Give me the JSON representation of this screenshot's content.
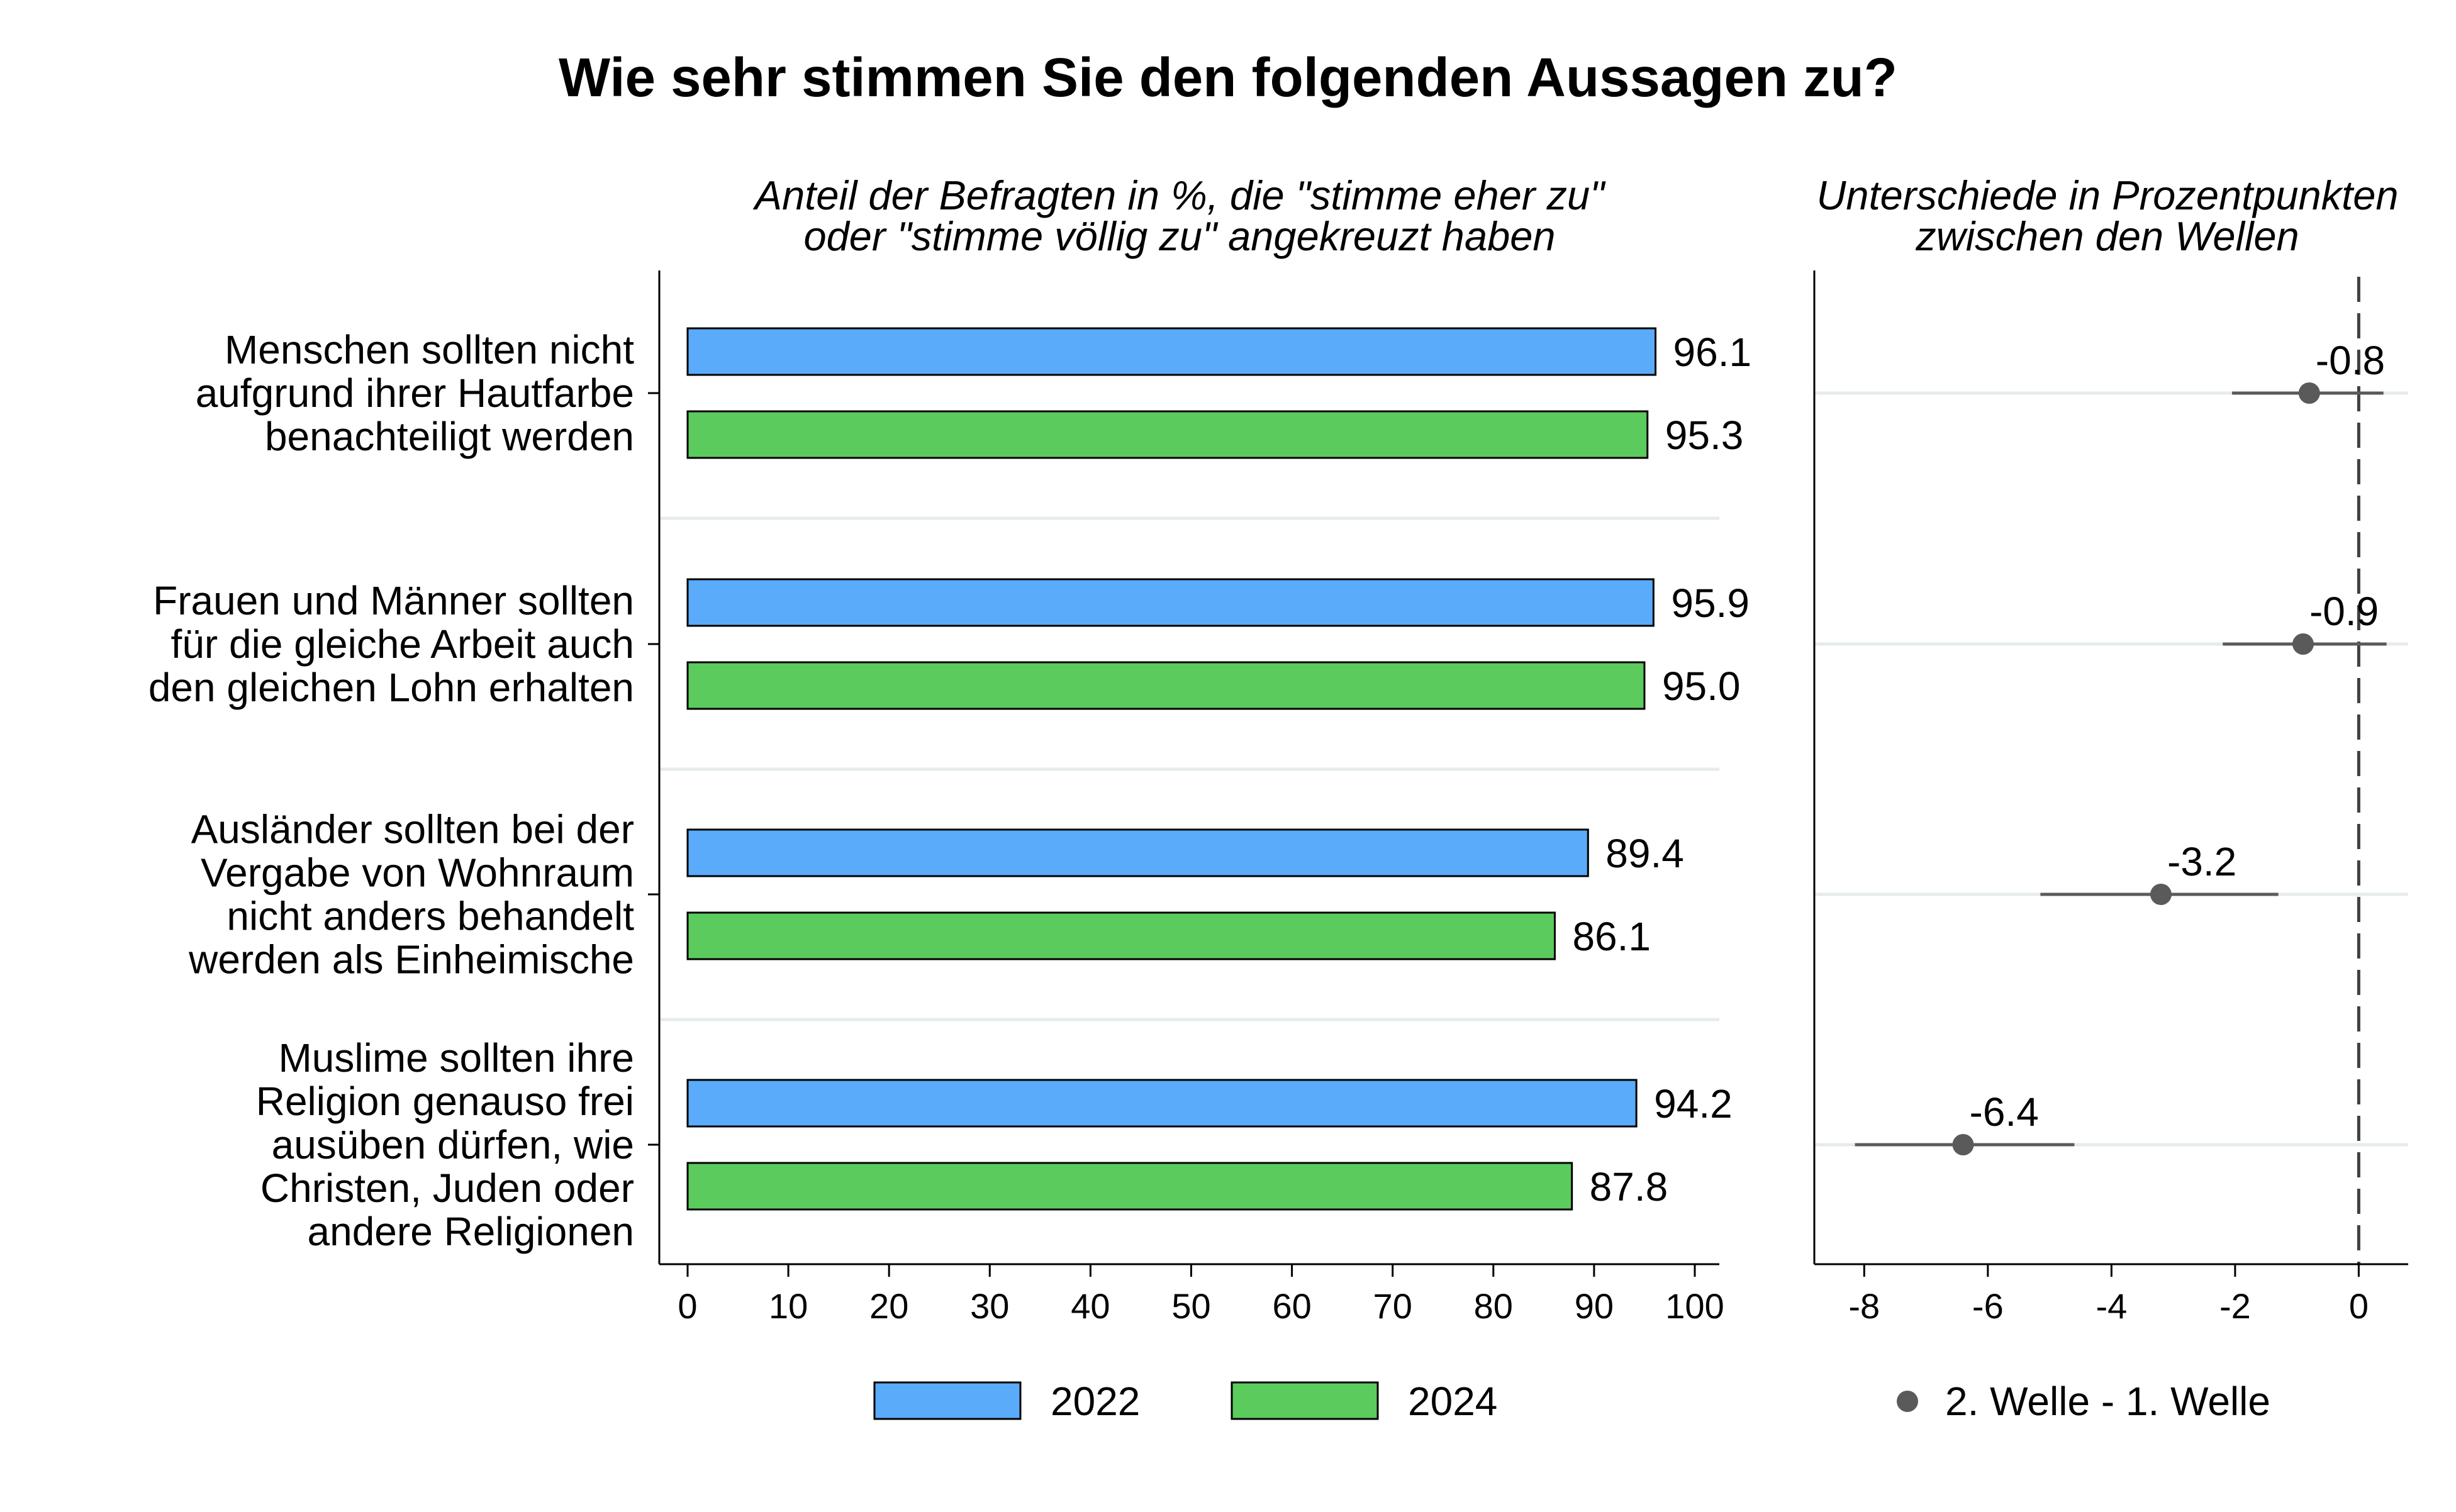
{
  "title": "Wie sehr stimmen Sie den folgenden Aussagen zu?",
  "colors": {
    "s2022": "#5aabf9",
    "s2024": "#5ccb5d",
    "dot": "#5a5a5a",
    "ci": "#5a5a5a",
    "grid": "#e6eceb"
  },
  "chart_data": [
    {
      "type": "bar",
      "orientation": "horizontal",
      "subtitle": [
        "Anteil der Befragten in %, die \"stimme eher zu\"",
        "oder \"stimme völlig zu\" angekreuzt haben"
      ],
      "categories": [
        [
          "Menschen sollten nicht",
          "aufgrund ihrer Hautfarbe",
          "benachteiligt werden"
        ],
        [
          "Frauen und Männer sollten",
          "für die gleiche Arbeit auch",
          "den gleichen Lohn erhalten"
        ],
        [
          "Ausländer sollten bei der",
          "Vergabe von Wohnraum",
          "nicht anders behandelt",
          "werden als Einheimische"
        ],
        [
          "Muslime sollten ihre",
          "Religion genauso frei",
          "ausüben dürfen, wie",
          "Christen, Juden oder",
          "andere Religionen"
        ]
      ],
      "series": [
        {
          "name": "2022",
          "values": [
            96.1,
            95.9,
            89.4,
            94.2
          ],
          "labels": [
            "96.1",
            "95.9",
            "89.4",
            "94.2"
          ]
        },
        {
          "name": "2024",
          "values": [
            95.3,
            95.0,
            86.1,
            87.8
          ],
          "labels": [
            "95.3",
            "95.0",
            "86.1",
            "87.8"
          ]
        }
      ],
      "xlim": [
        0,
        100
      ],
      "xticks": [
        0,
        10,
        20,
        30,
        40,
        50,
        60,
        70,
        80,
        90,
        100
      ],
      "legend": "bottom"
    },
    {
      "type": "scatter",
      "subtitle": [
        "Unterschiede in Prozentpunkten",
        "zwischen den Wellen"
      ],
      "series": [
        {
          "name": "2. Welle - 1. Welle",
          "values": [
            -0.8,
            -0.9,
            -3.2,
            -6.4
          ],
          "labels": [
            "-0.8",
            "-0.9",
            "-3.2",
            "-6.4"
          ],
          "ci_low": [
            -2.05,
            -2.2,
            -5.15,
            -8.15
          ],
          "ci_high": [
            0.4,
            0.45,
            -1.3,
            -4.6
          ]
        }
      ],
      "xlim": [
        -8.4,
        0.8
      ],
      "xticks": [
        -8,
        -6,
        -4,
        -2,
        0
      ],
      "reference_line": 0,
      "legend": "bottom"
    }
  ]
}
